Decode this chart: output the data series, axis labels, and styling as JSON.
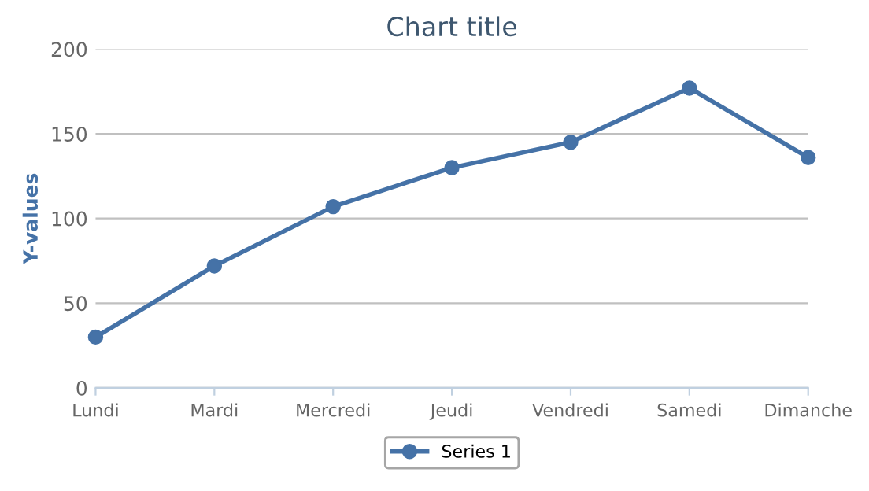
{
  "chart_data": {
    "type": "line",
    "title": "Chart title",
    "ylabel": "Y-values",
    "categories": [
      "Lundi",
      "Mardi",
      "Mercredi",
      "Jeudi",
      "Vendredi",
      "Samedi",
      "Dimanche"
    ],
    "series": [
      {
        "name": "Series 1",
        "color": "#4572a7",
        "values": [
          30,
          72,
          107,
          130,
          145,
          177,
          136
        ]
      }
    ],
    "ylim": [
      0,
      200
    ],
    "yticks": [
      0,
      50,
      100,
      150,
      200
    ],
    "grid": "y",
    "legend": "bottom",
    "marker": "circle",
    "line_style": "solid"
  }
}
